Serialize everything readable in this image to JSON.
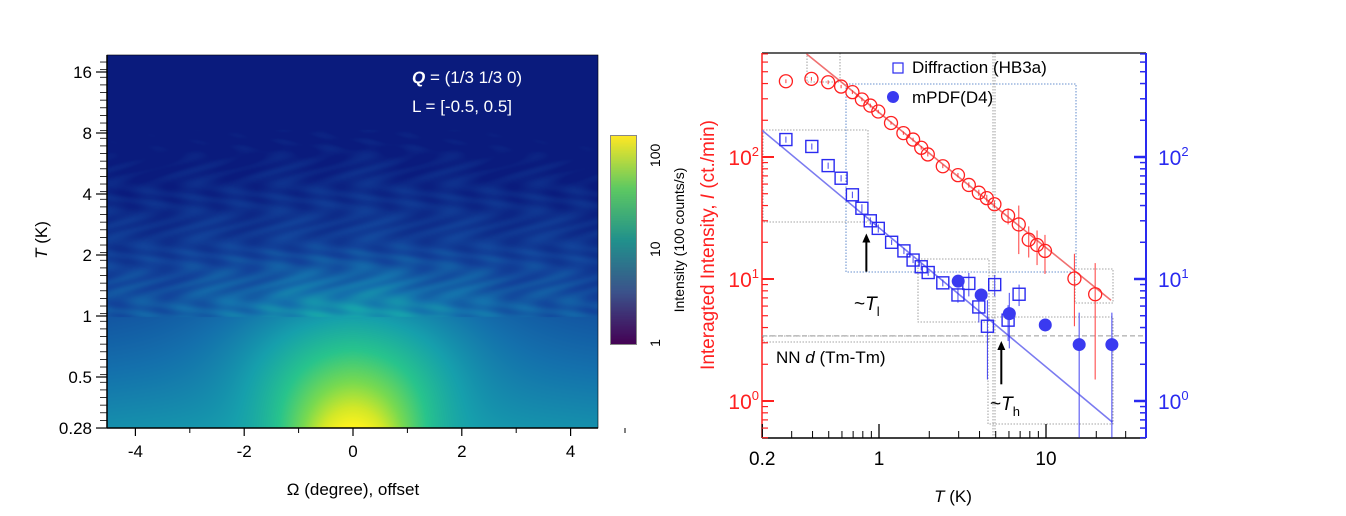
{
  "chart_data": [
    {
      "type": "heatmap",
      "annotation": {
        "q_symbol": "Q",
        "q_value": " = (1/3 1/3 0)",
        "l_range": "L = [-0.5, 0.5]"
      },
      "xlabel": "Ω (degree), offset",
      "ylabel": {
        "italic": "T",
        "rest": " (K)"
      },
      "xlim": [
        -4.5,
        4.5
      ],
      "ylim": [
        0.28,
        19
      ],
      "yscale": "log",
      "x_ticks": [
        "-4",
        "-2",
        "0",
        "2",
        "4"
      ],
      "y_ticks": [
        "0.28",
        "0.5",
        "1",
        "2",
        "4",
        "8",
        "16"
      ],
      "colorbar": {
        "label": "Intensity (100 counts/s)",
        "scale": "log",
        "range": [
          1,
          165
        ],
        "ticks": [
          "1",
          "10",
          "100"
        ],
        "colormap": "viridis"
      },
      "description_of_values": {
        "peak_center_omega": 0,
        "max_intensity_at_T": 0.28,
        "peak_fades_above_T": 8
      }
    },
    {
      "type": "scatter",
      "xlabel": {
        "italic": "T",
        "rest": " (K)"
      },
      "ylabel_left": {
        "pre": "Interagted Intensity, ",
        "italic": "I",
        "post": " (ct./min)"
      },
      "xscale": "log",
      "yscale": "log",
      "xlim": [
        0.2,
        39
      ],
      "ylim": [
        0.5,
        710
      ],
      "x_ticks": [
        "0.2",
        "1",
        "10"
      ],
      "y_ticks_left": [
        {
          "base": "10",
          "exp": "0"
        },
        {
          "base": "10",
          "exp": "1"
        },
        {
          "base": "10",
          "exp": "2"
        }
      ],
      "y_ticks_right": [
        {
          "base": "10",
          "exp": "0"
        },
        {
          "base": "10",
          "exp": "1"
        },
        {
          "base": "10",
          "exp": "2"
        }
      ],
      "colors": {
        "red": "#ff2020",
        "blue": "#2a2af0",
        "blue_fit": "#7b7bf0",
        "red_fit": "#f07070",
        "reference": "#999999"
      },
      "legend": {
        "placement": "top-center",
        "entries": [
          "Diffraction (HB3a)",
          "mPDF(D4)"
        ]
      },
      "series": [
        {
          "marker": "open-circle",
          "color": "red",
          "axis": "left",
          "points": [
            [
              0.277,
              418,
              15
            ],
            [
              0.394,
              437,
              15
            ],
            [
              0.496,
              410,
              15
            ],
            [
              0.593,
              378,
              12
            ],
            [
              0.693,
              340,
              12
            ],
            [
              0.79,
              296,
              10
            ],
            [
              0.887,
              264,
              10
            ],
            [
              0.99,
              236,
              8
            ],
            [
              1.18,
              190,
              6
            ],
            [
              1.4,
              157,
              5
            ],
            [
              1.6,
              139,
              5
            ],
            [
              1.79,
              119,
              4
            ],
            [
              1.96,
              105,
              4
            ],
            [
              2.41,
              84,
              3
            ],
            [
              2.97,
              71,
              3
            ],
            [
              3.45,
              59,
              3
            ],
            [
              3.96,
              51,
              3
            ],
            [
              4.42,
              46,
              3
            ],
            [
              4.91,
              41,
              3
            ],
            [
              5.93,
              33,
              5
            ],
            [
              6.87,
              28,
              12
            ],
            [
              7.88,
              21,
              6
            ],
            [
              8.84,
              19,
              6
            ],
            [
              9.86,
              17,
              6
            ],
            [
              14.8,
              10.1,
              6
            ],
            [
              19.7,
              7.5,
              6
            ]
          ]
        },
        {
          "name": "Diffraction (HB3a)",
          "marker": "open-square",
          "color": "blue",
          "axis": "left",
          "points": [
            [
              0.277,
              139,
              8
            ],
            [
              0.396,
              122,
              7
            ],
            [
              0.496,
              85,
              5
            ],
            [
              0.593,
              67,
              4
            ],
            [
              0.693,
              49,
              3
            ],
            [
              0.79,
              38,
              3
            ],
            [
              0.887,
              30,
              2
            ],
            [
              0.99,
              26,
              2
            ],
            [
              1.19,
              20,
              1
            ],
            [
              1.41,
              17,
              1
            ],
            [
              1.6,
              14.3,
              0.8
            ],
            [
              1.79,
              12.6,
              0.8
            ],
            [
              1.97,
              11.3,
              0.7
            ],
            [
              2.41,
              9.3,
              0.6
            ],
            [
              2.97,
              7.4,
              1
            ],
            [
              3.45,
              9.2,
              2
            ],
            [
              3.96,
              5.9,
              1.5
            ],
            [
              4.46,
              4.1,
              2.6
            ],
            [
              4.93,
              9.0,
              1.8
            ],
            [
              5.93,
              4.6,
              1.5
            ],
            [
              6.9,
              7.5,
              1.5
            ]
          ]
        },
        {
          "name": "mPDF(D4)",
          "marker": "filled-circle",
          "color": "blue",
          "axis": "right",
          "points": [
            [
              2.98,
              9.6,
              0.5
            ],
            [
              4.09,
              7.4,
              0.5
            ],
            [
              6.03,
              5.2,
              2.5
            ],
            [
              9.9,
              4.2,
              0.4
            ],
            [
              15.8,
              2.9,
              2.4
            ],
            [
              24.8,
              2.9,
              2.4
            ]
          ]
        }
      ],
      "fits": [
        {
          "color": "red_fit",
          "from": [
            0.368,
            700
          ],
          "to": [
            24.5,
            6.7
          ]
        },
        {
          "color": "blue_fit",
          "from": [
            0.2,
            165
          ],
          "to": [
            25,
            0.67
          ]
        }
      ],
      "reference_line": {
        "I": 3.42,
        "label": {
          "pre": "NN ",
          "italic": "d",
          "post": " (Tm-Tm)"
        }
      },
      "arrows": [
        {
          "T": 0.84,
          "from_I": 11.5,
          "to_I": 23.6,
          "label": {
            "pre": "~",
            "italic": "T",
            "sub": "l"
          }
        },
        {
          "T": 5.4,
          "from_I": 1.37,
          "to_I": 3.1,
          "label": {
            "pre": "~",
            "italic": "T",
            "sub": "h"
          }
        }
      ]
    }
  ]
}
